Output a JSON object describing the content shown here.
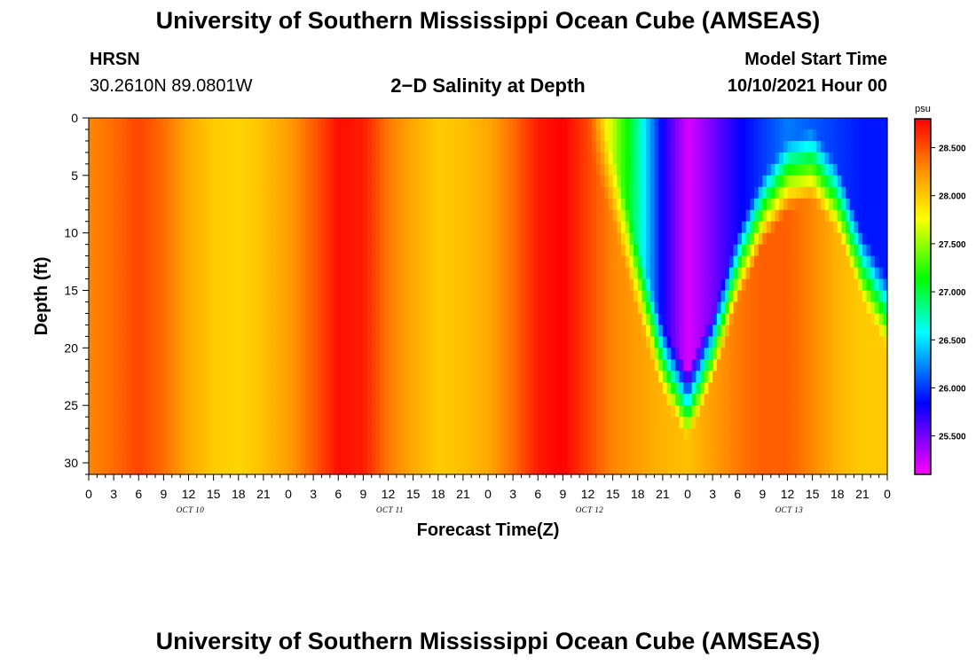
{
  "header": {
    "title": "University of Southern Mississippi Ocean Cube (AMSEAS)",
    "station": "HRSN",
    "coordinates": "30.2610N  89.0801W",
    "plot_title": "2−D Salinity at Depth",
    "start_label": "Model Start Time",
    "start_value": "10/10/2021 Hour 00"
  },
  "footer": {
    "title": "University of Southern Mississippi Ocean Cube (AMSEAS)"
  },
  "colors": {
    "low": "#ff00ff",
    "mid_low": "#0000ff",
    "mid": "#00ffff",
    "mid_high": "#ffff00",
    "high": "#ff0000"
  },
  "chart_data": {
    "type": "heatmap",
    "title": "2−D Salinity at Depth",
    "xlabel": "Forecast Time(Z)",
    "ylabel": "Depth (ft)",
    "units": "psu",
    "xlim": [
      0,
      96
    ],
    "ylim": [
      0,
      31
    ],
    "xtick_labels": [
      "0",
      "3",
      "6",
      "9",
      "12",
      "15",
      "18",
      "21",
      "0",
      "3",
      "6",
      "9",
      "12",
      "15",
      "18",
      "21",
      "0",
      "3",
      "6",
      "9",
      "12",
      "15",
      "18",
      "21",
      "0",
      "3",
      "6",
      "9",
      "12",
      "15",
      "18",
      "21",
      "0"
    ],
    "day_labels": [
      {
        "label": "OCT 10",
        "hour": 12
      },
      {
        "label": "OCT 11",
        "hour": 36
      },
      {
        "label": "OCT 12",
        "hour": 60
      },
      {
        "label": "OCT 13",
        "hour": 84
      }
    ],
    "ytick_values": [
      0,
      5,
      10,
      15,
      20,
      25,
      30
    ],
    "colorbar": {
      "min": 25.1,
      "max": 28.8,
      "ticks": [
        "25.500",
        "26.000",
        "26.500",
        "27.000",
        "27.500",
        "28.000",
        "28.500"
      ]
    },
    "surface_salinity_by_hour": [
      [
        0,
        28.3
      ],
      [
        3,
        28.4
      ],
      [
        6,
        28.55
      ],
      [
        9,
        28.4
      ],
      [
        12,
        28.15
      ],
      [
        15,
        28.0
      ],
      [
        18,
        27.95
      ],
      [
        21,
        28.05
      ],
      [
        24,
        28.2
      ],
      [
        27,
        28.45
      ],
      [
        30,
        28.75
      ],
      [
        33,
        28.7
      ],
      [
        36,
        28.35
      ],
      [
        39,
        28.15
      ],
      [
        42,
        27.7
      ],
      [
        45,
        27.85
      ],
      [
        48,
        28.1
      ],
      [
        51,
        28.4
      ],
      [
        54,
        28.7
      ],
      [
        57,
        28.8
      ],
      [
        60,
        28.5
      ],
      [
        63,
        27.6
      ],
      [
        66,
        26.8
      ],
      [
        69,
        25.8
      ],
      [
        72,
        25.2
      ],
      [
        75,
        25.5
      ],
      [
        78,
        25.8
      ],
      [
        81,
        26.0
      ],
      [
        84,
        26.2
      ],
      [
        87,
        26.1
      ],
      [
        90,
        26.0
      ],
      [
        93,
        25.9
      ],
      [
        96,
        25.9
      ]
    ],
    "deep_salinity_by_hour": [
      [
        0,
        28.3
      ],
      [
        3,
        28.4
      ],
      [
        6,
        28.55
      ],
      [
        9,
        28.4
      ],
      [
        12,
        28.15
      ],
      [
        15,
        28.0
      ],
      [
        18,
        27.95
      ],
      [
        21,
        28.05
      ],
      [
        24,
        28.2
      ],
      [
        27,
        28.45
      ],
      [
        30,
        28.75
      ],
      [
        33,
        28.7
      ],
      [
        36,
        28.35
      ],
      [
        39,
        28.15
      ],
      [
        42,
        28.0
      ],
      [
        45,
        28.05
      ],
      [
        48,
        28.15
      ],
      [
        51,
        28.4
      ],
      [
        54,
        28.7
      ],
      [
        57,
        28.8
      ],
      [
        60,
        28.55
      ],
      [
        63,
        28.3
      ],
      [
        66,
        28.2
      ],
      [
        69,
        28.1
      ],
      [
        72,
        28.05
      ],
      [
        75,
        28.2
      ],
      [
        78,
        28.35
      ],
      [
        81,
        28.45
      ],
      [
        84,
        28.45
      ],
      [
        87,
        28.3
      ],
      [
        90,
        28.1
      ],
      [
        93,
        28.0
      ],
      [
        96,
        28.0
      ]
    ],
    "halocline_depth_by_hour": [
      [
        60,
        0
      ],
      [
        63,
        6
      ],
      [
        66,
        14
      ],
      [
        69,
        21
      ],
      [
        72,
        25
      ],
      [
        75,
        20
      ],
      [
        78,
        13
      ],
      [
        81,
        8
      ],
      [
        84,
        5
      ],
      [
        87,
        4
      ],
      [
        90,
        7
      ],
      [
        93,
        13
      ],
      [
        96,
        17
      ]
    ]
  }
}
